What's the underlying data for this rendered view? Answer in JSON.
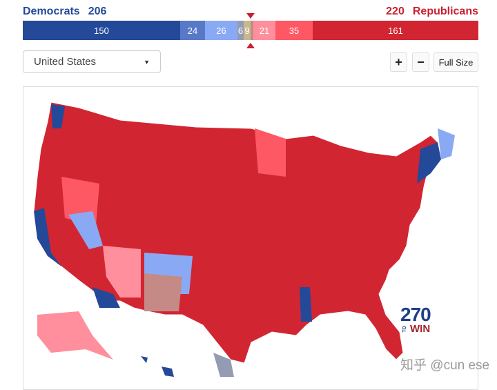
{
  "header": {
    "dem_label": "Democrats",
    "dem_total": "206",
    "rep_total": "220",
    "rep_label": "Republicans"
  },
  "bar": {
    "segments": [
      {
        "label": "150",
        "color": "#244999"
      },
      {
        "label": "24",
        "color": "#5878c8"
      },
      {
        "label": "26",
        "color": "#8aa9f5"
      },
      {
        "label": "6",
        "color": "#949cb3"
      },
      {
        "label": "9",
        "color": "#c7b98f"
      },
      {
        "label": "",
        "color": "#c58a86"
      },
      {
        "label": "21",
        "color": "#ff8f9c"
      },
      {
        "label": "35",
        "color": "#ff5865"
      },
      {
        "label": "161",
        "color": "#d22532"
      }
    ]
  },
  "controls": {
    "region_select": "United States",
    "zoom_in": "+",
    "zoom_out": "−",
    "full_size": "Full Size"
  },
  "logo": {
    "number": "270",
    "to": "TO",
    "win": "WIN"
  },
  "watermark": "知乎 @cun ese",
  "colors": {
    "dem": "#244999",
    "rep": "#c9202f",
    "map_solid_r": "#d22532",
    "map_likely_r": "#ff5865",
    "map_lean_r": "#ff8f9c",
    "map_lean_d": "#8aa9f5",
    "map_likely_d": "#5878c8",
    "map_solid_d": "#244999"
  }
}
